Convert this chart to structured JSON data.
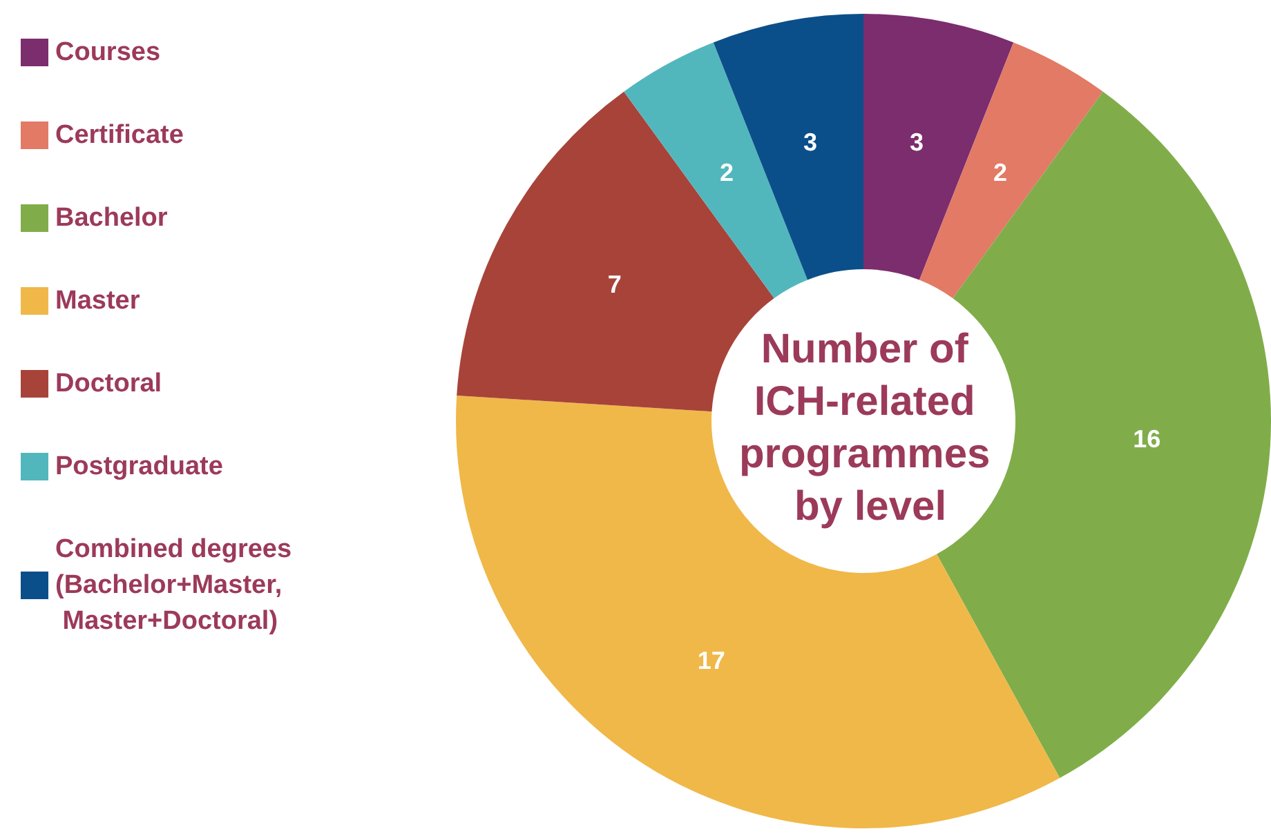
{
  "chart_data": {
    "type": "donut",
    "title": "Number of ICH-related programmes by level",
    "categories": [
      "Courses",
      "Certificate",
      "Bachelor",
      "Master",
      "Doctoral",
      "Postgraduate",
      "Combined degrees (Bachelor+Master, Master+Doctoral)"
    ],
    "values": [
      3,
      2,
      16,
      17,
      7,
      2,
      3
    ],
    "colors": [
      "#7b2d6e",
      "#e27a66",
      "#80ad4a",
      "#f0b849",
      "#a8433a",
      "#52b7bd",
      "#0b4f8a"
    ],
    "data_labels": true,
    "legend": "left"
  }
}
